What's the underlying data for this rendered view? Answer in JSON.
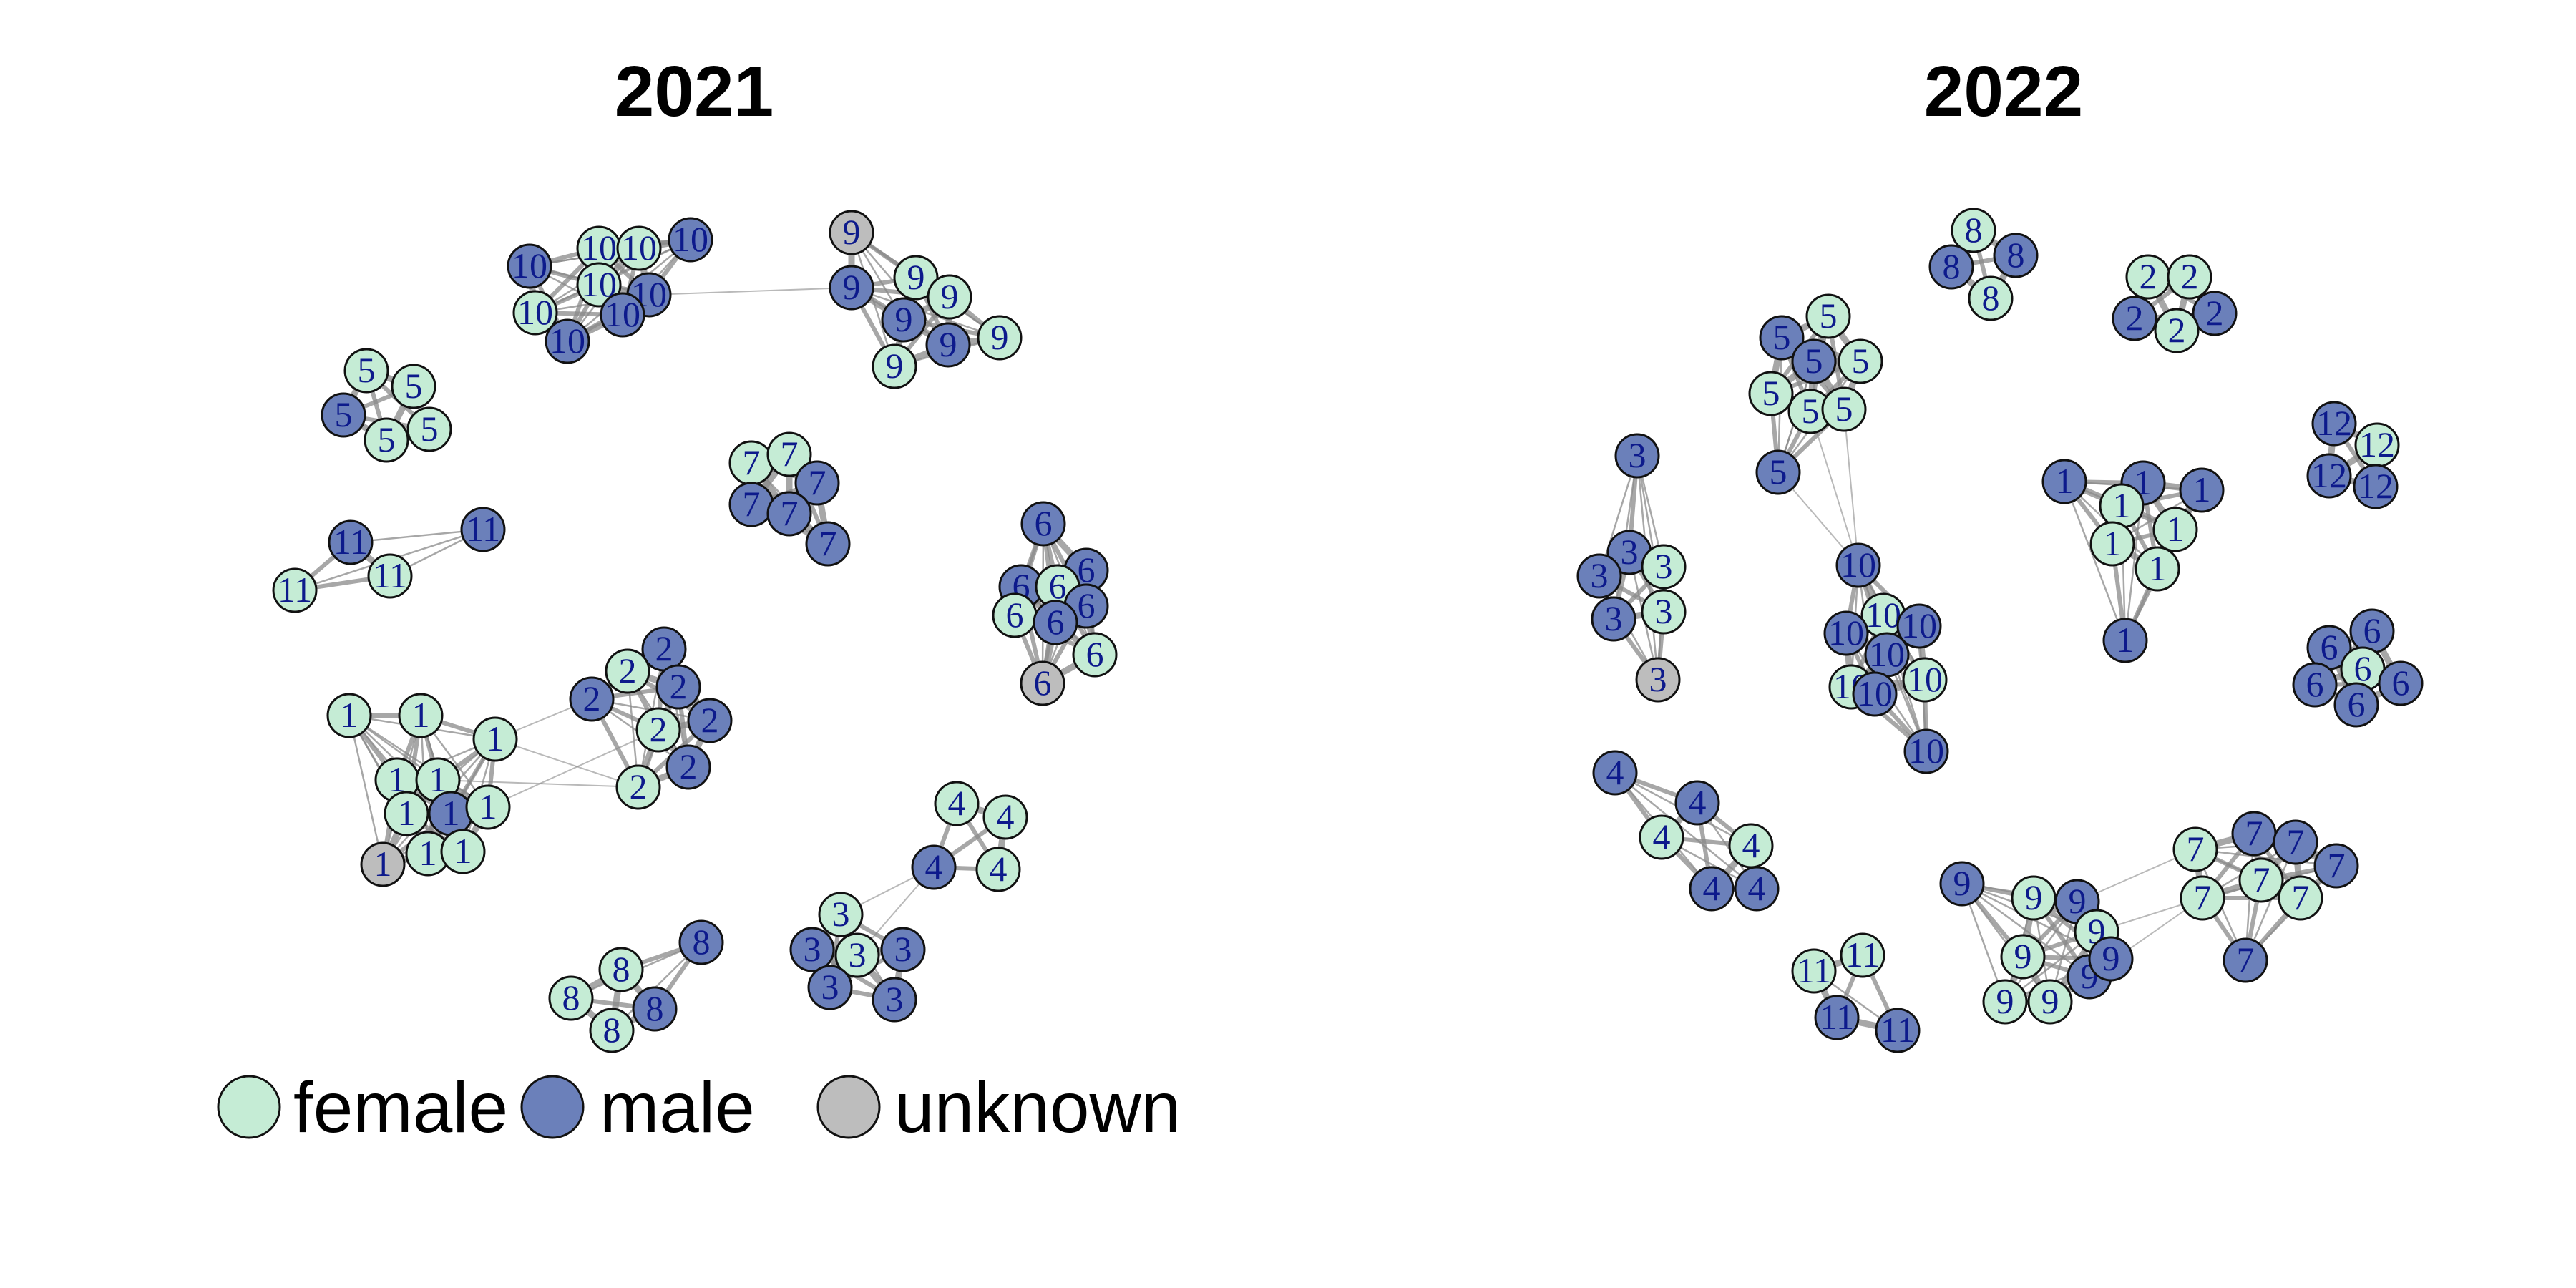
{
  "colors": {
    "female": "#c5ecd5",
    "male": "#6b80ba",
    "unknown": "#bdbdbd",
    "edge": "#8a8a8a",
    "node_stroke": "#111111",
    "label": "#0d1a8c"
  },
  "panels": [
    {
      "title": "2021",
      "groups": [
        {
          "id": "10",
          "nodes": [
            "male",
            "female",
            "female",
            "male",
            "female",
            "female",
            "male",
            "male",
            "male"
          ]
        },
        {
          "id": "9",
          "nodes": [
            "unknown",
            "male",
            "female",
            "female",
            "male",
            "male",
            "female",
            "female"
          ]
        },
        {
          "id": "5",
          "nodes": [
            "female",
            "female",
            "male",
            "female",
            "female"
          ]
        },
        {
          "id": "11",
          "nodes": [
            "male",
            "male",
            "female",
            "female"
          ]
        },
        {
          "id": "7",
          "nodes": [
            "female",
            "female",
            "male",
            "male",
            "male",
            "male"
          ]
        },
        {
          "id": "6",
          "nodes": [
            "male",
            "male",
            "male",
            "female",
            "male",
            "female",
            "male",
            "unknown",
            "female"
          ]
        },
        {
          "id": "1",
          "nodes": [
            "female",
            "female",
            "female",
            "female",
            "female",
            "female",
            "male",
            "female",
            "unknown",
            "female",
            "female"
          ]
        },
        {
          "id": "2",
          "nodes": [
            "male",
            "female",
            "male",
            "male",
            "female",
            "male",
            "female",
            "male"
          ]
        },
        {
          "id": "4",
          "nodes": [
            "female",
            "female",
            "male",
            "female"
          ]
        },
        {
          "id": "3",
          "nodes": [
            "female",
            "male",
            "female",
            "male",
            "male",
            "male"
          ]
        },
        {
          "id": "8",
          "nodes": [
            "male",
            "female",
            "female",
            "male",
            "female"
          ]
        }
      ]
    },
    {
      "title": "2022",
      "groups": [
        {
          "id": "8",
          "nodes": [
            "female",
            "male",
            "male",
            "female"
          ]
        },
        {
          "id": "2",
          "nodes": [
            "female",
            "female",
            "male",
            "male",
            "female"
          ]
        },
        {
          "id": "5",
          "nodes": [
            "female",
            "male",
            "male",
            "female",
            "female",
            "female",
            "female",
            "male"
          ]
        },
        {
          "id": "12",
          "nodes": [
            "male",
            "female",
            "male",
            "male"
          ]
        },
        {
          "id": "3",
          "nodes": [
            "male",
            "male",
            "female",
            "male",
            "male",
            "female",
            "unknown"
          ]
        },
        {
          "id": "1",
          "nodes": [
            "male",
            "male",
            "male",
            "female",
            "female",
            "female",
            "female",
            "male"
          ]
        },
        {
          "id": "10",
          "nodes": [
            "male",
            "female",
            "male",
            "male",
            "female",
            "male",
            "female",
            "male",
            "male"
          ]
        },
        {
          "id": "6",
          "nodes": [
            "male",
            "male",
            "male",
            "female",
            "male",
            "male"
          ]
        },
        {
          "id": "4",
          "nodes": [
            "male",
            "male",
            "female",
            "female",
            "male",
            "male"
          ]
        },
        {
          "id": "9",
          "nodes": [
            "male",
            "female",
            "male",
            "female",
            "female",
            "male",
            "female",
            "female",
            "male"
          ]
        },
        {
          "id": "7",
          "nodes": [
            "female",
            "male",
            "male",
            "male",
            "female",
            "female",
            "female",
            "male"
          ]
        },
        {
          "id": "11",
          "nodes": [
            "female",
            "female",
            "male",
            "male"
          ]
        }
      ]
    }
  ],
  "legend": [
    {
      "key": "female",
      "label": "female"
    },
    {
      "key": "male",
      "label": "male"
    },
    {
      "key": "unknown",
      "label": "unknown"
    }
  ]
}
